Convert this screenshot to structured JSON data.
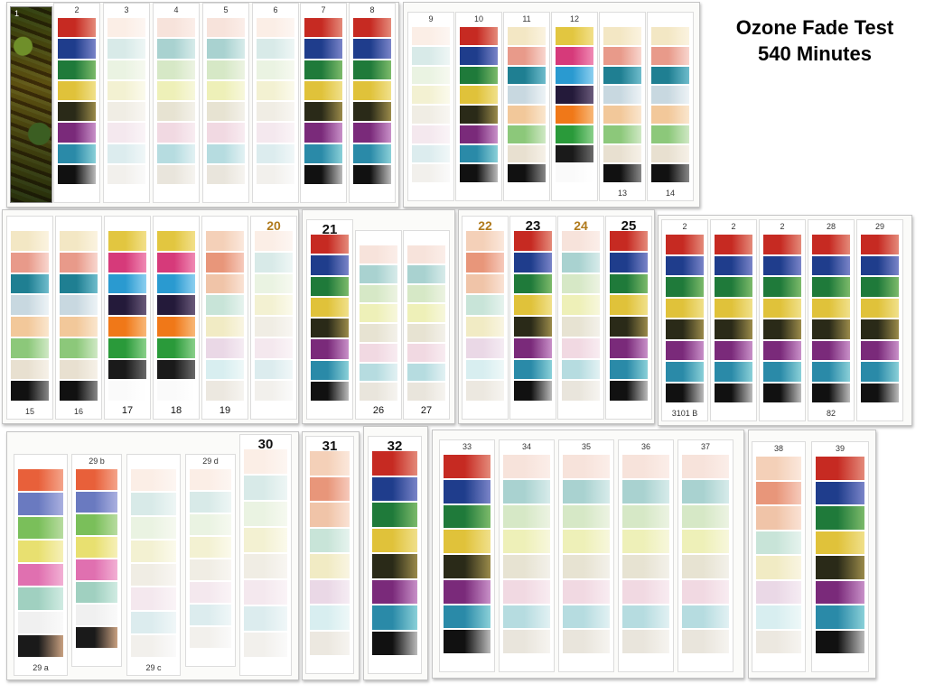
{
  "title": {
    "line1": "Ozone Fade Test",
    "line2": "540  Minutes"
  },
  "photo_label": "1",
  "labels_top": {
    "s2": "2",
    "s3": "3",
    "s4": "4",
    "s5": "5",
    "s6": "6",
    "s7": "7",
    "s8": "8",
    "s9": "9",
    "s10": "10",
    "s11": "11",
    "s12": "12",
    "s20": "20",
    "s21": "21",
    "s22": "22",
    "s23": "23",
    "s24": "24",
    "s25": "25",
    "sA": "2",
    "sB": "2",
    "sC": "2",
    "s28a": "28",
    "s28b": "29",
    "s29b": "29 b",
    "s29d": "29 d",
    "s30": "30",
    "s31": "31",
    "s32": "32",
    "s33": "33",
    "s34": "34",
    "s35": "35",
    "s36": "36",
    "s37": "37",
    "s38": "38",
    "s39": "39"
  },
  "labels_bottom": {
    "s13": "13",
    "s14": "14",
    "s15": "15",
    "s16": "16",
    "s17": "17",
    "s18": "18",
    "s19": "19",
    "s26": "26",
    "s27": "27",
    "s3101": "3101 B",
    "s82": "82",
    "s29a": "29 a",
    "s29c": "29 c"
  },
  "palettes": {
    "full": [
      "#c62a22",
      "#e48a7a",
      "#1f3d8c",
      "#7a84c8",
      "#1f7a3a",
      "#7cba6a",
      "#e0c23a",
      "#f0e08a",
      "#2a2a18",
      "#9a8a4a",
      "#7a2a7a",
      "#c890c8",
      "#2a8aa8",
      "#8ad0d8",
      "#111111",
      "#bbbbbb"
    ],
    "faded": [
      "#fbeee6",
      "#fdf6f2",
      "#d8eae8",
      "#eef6f5",
      "#eaf3e2",
      "#f6f9f0",
      "#f3f1d2",
      "#fbfaec",
      "#f0ede4",
      "#f8f6f2",
      "#f4e8ee",
      "#faf4f7",
      "#dcecee",
      "#f0f7f8",
      "#f2f0ec",
      "#fafafa"
    ],
    "pale": [
      "#f7e3db",
      "#fbeee9",
      "#a9d2d0",
      "#d7ebea",
      "#d6e8c6",
      "#ecf3e2",
      "#eef0b8",
      "#f7f7dc",
      "#e7e3d2",
      "#f3f1ea",
      "#f1d9e2",
      "#f8ecf1",
      "#b6dce0",
      "#e2f1f3",
      "#e9e5dc",
      "#f6f4f0"
    ],
    "marker": [
      "#f3e7c4",
      "#fbf3e0",
      "#e89a8a",
      "#f8d6ce",
      "#1f7f92",
      "#6fbccc",
      "#c8d8e0",
      "#edf3f6",
      "#f2c89a",
      "#fae6ce",
      "#8cc87a",
      "#cfe8c4",
      "#e8e0d0",
      "#f6f1e8",
      "#111111",
      "#888888"
    ],
    "bright": [
      "#e2c640",
      "#f2e08a",
      "#d63a7a",
      "#f08ab4",
      "#2a9ad0",
      "#8ccff0",
      "#241a3a",
      "#6a5a7a",
      "#f07818",
      "#f8b878",
      "#2a9a3a",
      "#8ad08a",
      "#1a1a1a",
      "#6a6a6a",
      "#fafafa",
      "#ffffff"
    ],
    "orange": [
      "#f4d0b8",
      "#fbe8dc",
      "#e8967a",
      "#f6cabb",
      "#f0c4a8",
      "#fae2d4",
      "#c8e4d8",
      "#e6f3ee",
      "#f1ebc4",
      "#f9f5e2",
      "#ead8e6",
      "#f5ecf3",
      "#d8eef0",
      "#eef8f8",
      "#ece8e0",
      "#f6f4f0"
    ],
    "spotty": [
      "#e8603a",
      "#f4a48a",
      "#6a7ac0",
      "#aab0e0",
      "#7abf5a",
      "#b8dca0",
      "#e8e070",
      "#f6f0b8",
      "#e070b0",
      "#f2b0d4",
      "#a0d0c0",
      "#d0ebe2",
      "#f0f0f0",
      "#fafafa",
      "#1a1a1a",
      "#c8a080"
    ]
  }
}
